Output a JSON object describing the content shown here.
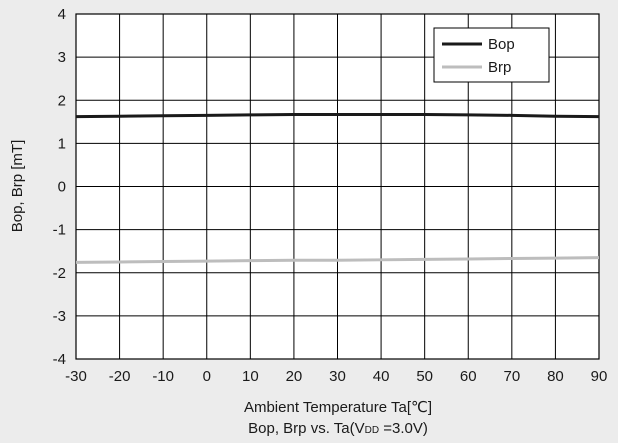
{
  "chart_data": {
    "type": "line",
    "title": "",
    "xlabel": "Ambient Temperature Ta[℃]",
    "ylabel": "Bop, Brp [mT]",
    "caption_prefix": "Bop, Brp vs. Ta(V",
    "caption_sub": "DD",
    "caption_suffix": " =3.0V)",
    "xlim": [
      -30,
      90
    ],
    "ylim": [
      -4,
      4
    ],
    "x_ticks": [
      -30,
      -20,
      -10,
      0,
      10,
      20,
      30,
      40,
      50,
      60,
      70,
      80,
      90
    ],
    "y_ticks": [
      -4,
      -3,
      -2,
      -1,
      0,
      1,
      2,
      3,
      4
    ],
    "x_tick_labels": [
      "-30",
      "-20",
      "-10",
      "0",
      "10",
      "20",
      "30",
      "40",
      "50",
      "60",
      "70",
      "80",
      "90"
    ],
    "y_tick_labels": [
      "-4",
      "-3",
      "-2",
      "-1",
      "0",
      "1",
      "2",
      "3",
      "4"
    ],
    "grid": true,
    "legend": "top-right",
    "x": [
      -30,
      -20,
      -10,
      0,
      10,
      20,
      30,
      40,
      50,
      60,
      70,
      80,
      90
    ],
    "series": [
      {
        "name": "Bop",
        "color": "#1a1a1a",
        "values": [
          1.62,
          1.63,
          1.64,
          1.65,
          1.66,
          1.67,
          1.67,
          1.67,
          1.67,
          1.66,
          1.65,
          1.63,
          1.62
        ]
      },
      {
        "name": "Brp",
        "color": "#bdbdbd",
        "values": [
          -1.76,
          -1.75,
          -1.74,
          -1.73,
          -1.72,
          -1.71,
          -1.71,
          -1.7,
          -1.69,
          -1.68,
          -1.67,
          -1.66,
          -1.65
        ]
      }
    ]
  }
}
